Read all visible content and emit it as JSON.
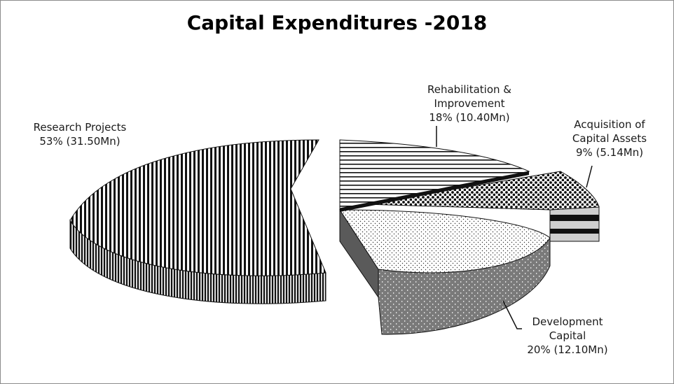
{
  "chart_data": {
    "type": "pie",
    "title": "Capital Expenditures -2018",
    "slices": [
      {
        "label": "Rehabilitation & Improvement",
        "label_lines": [
          "Rehabilitation &",
          "Improvement"
        ],
        "percent": 18,
        "value": 10.4,
        "value_text": "18% (10.40Mn)",
        "pattern": "horizontal-stripes"
      },
      {
        "label": "Acquisition of Capital Assets",
        "label_lines": [
          "Acquisition of",
          "Capital Assets"
        ],
        "percent": 9,
        "value": 5.14,
        "value_text": "9% (5.14Mn)",
        "pattern": "dots"
      },
      {
        "label": "Development Capital",
        "label_lines": [
          "Development",
          "Capital"
        ],
        "percent": 20,
        "value": 12.1,
        "value_text": "20% (12.10Mn)",
        "pattern": "fine-dots"
      },
      {
        "label": "Research Projects",
        "label_lines": [
          "Research Projects"
        ],
        "percent": 53,
        "value": 31.5,
        "value_text": "53% (31.50Mn)",
        "pattern": "vertical-stripes"
      }
    ],
    "units": "Mn",
    "legend": "none",
    "style": "3d-exploded"
  },
  "colors": {
    "stripe": "#000000",
    "background": "#ffffff",
    "border": "#8c8c8c"
  }
}
